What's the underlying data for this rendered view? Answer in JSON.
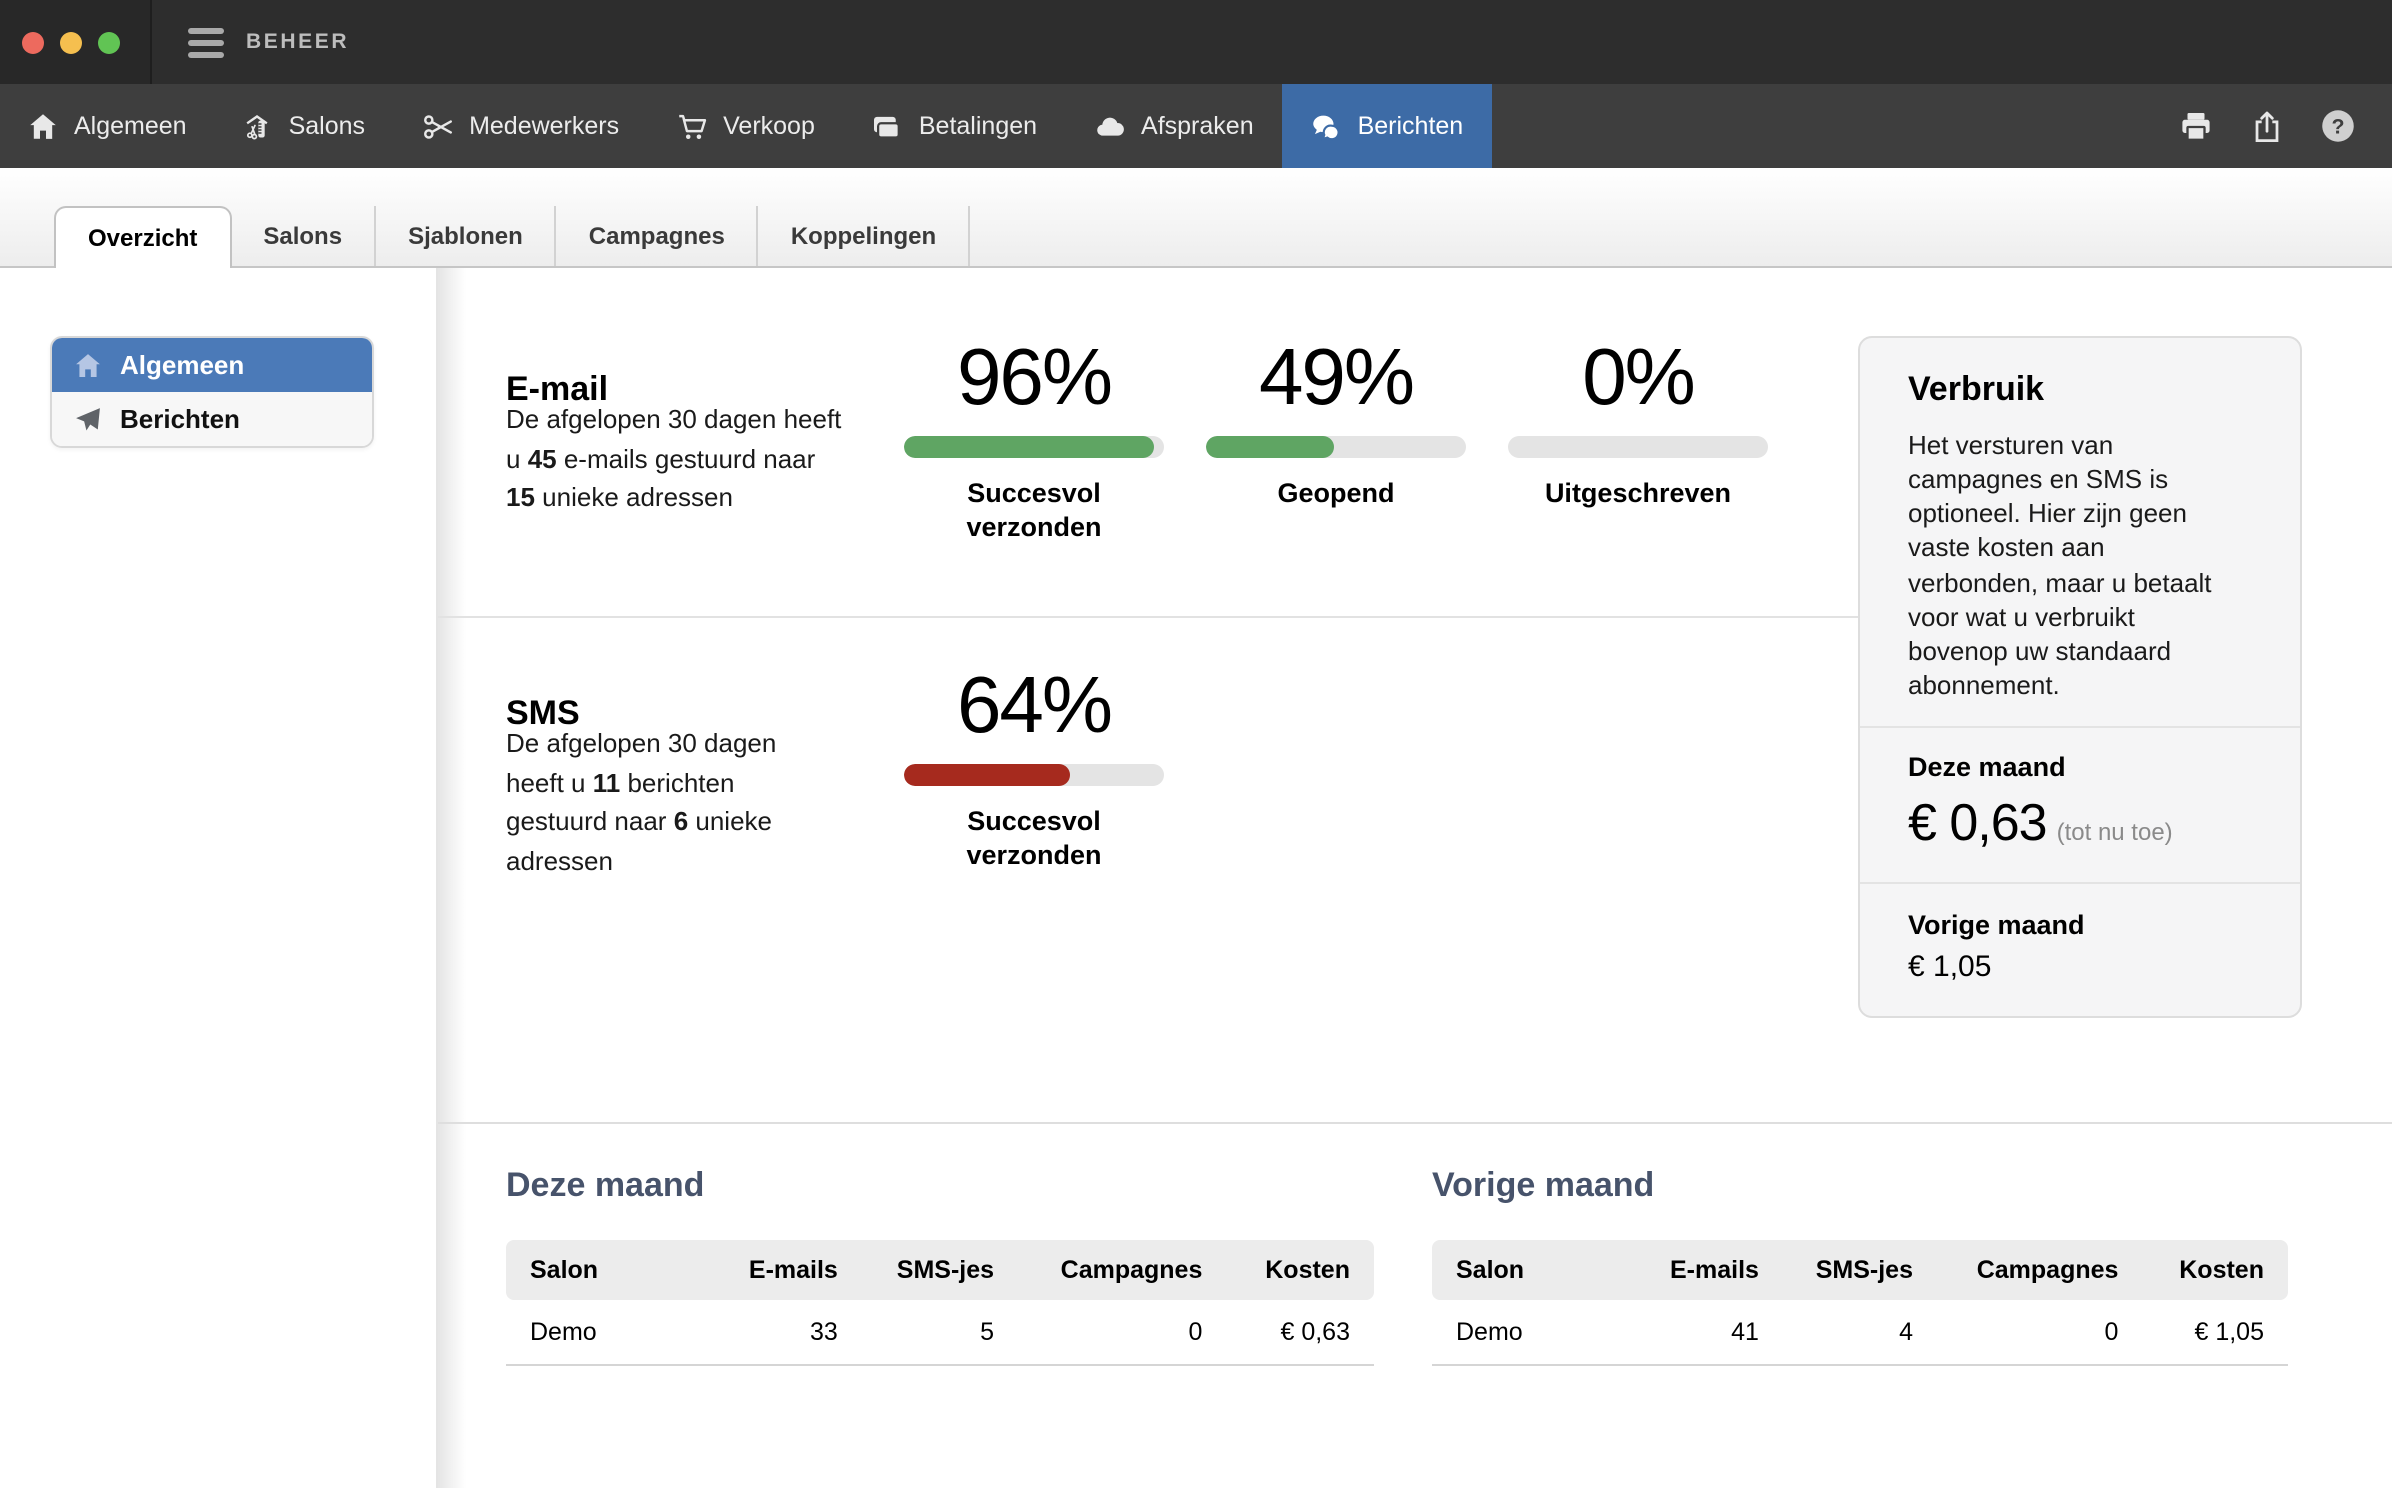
{
  "colors": {
    "green": "#5fa563",
    "red": "#a62a1e",
    "track": "#e4e4e4",
    "nav_active_blue": "#3d6ba6",
    "sidebar_active_blue": "#4b7ab8",
    "table_title": "#47536b"
  },
  "window": {
    "app_title": "BEHEER"
  },
  "navbar": {
    "items": [
      {
        "label": "Algemeen",
        "icon": "home-icon",
        "active": false
      },
      {
        "label": "Salons",
        "icon": "salon-icon",
        "active": false
      },
      {
        "label": "Medewerkers",
        "icon": "scissors-icon",
        "active": false
      },
      {
        "label": "Verkoop",
        "icon": "cart-icon",
        "active": false
      },
      {
        "label": "Betalingen",
        "icon": "payments-icon",
        "active": false
      },
      {
        "label": "Afspraken",
        "icon": "cloud-icon",
        "active": false
      },
      {
        "label": "Berichten",
        "icon": "chat-icon",
        "active": true
      }
    ],
    "actions": [
      {
        "icon": "printer-icon"
      },
      {
        "icon": "share-icon"
      },
      {
        "icon": "help-icon"
      }
    ]
  },
  "tabs": [
    {
      "label": "Overzicht",
      "active": true
    },
    {
      "label": "Salons",
      "active": false
    },
    {
      "label": "Sjablonen",
      "active": false
    },
    {
      "label": "Campagnes",
      "active": false
    },
    {
      "label": "Koppelingen",
      "active": false
    }
  ],
  "sidebar": {
    "items": [
      {
        "label": "Algemeen",
        "icon": "home-icon",
        "active": true
      },
      {
        "label": "Berichten",
        "icon": "send-icon",
        "active": false
      }
    ]
  },
  "email_section": {
    "title": "E-mail",
    "desc": [
      "De afgelopen 30 dagen heeft u ",
      "45",
      " e-mails gestuurd naar ",
      "15",
      " unieke adressen"
    ],
    "stats": [
      {
        "value": "96%",
        "pct": 96,
        "color": "green",
        "label": "Succesvol verzonden"
      },
      {
        "value": "49%",
        "pct": 49,
        "color": "green",
        "label": "Geopend"
      },
      {
        "value": "0%",
        "pct": 0,
        "color": "green",
        "label": "Uitgeschreven"
      }
    ]
  },
  "sms_section": {
    "title": "SMS",
    "desc": [
      "De afgelopen 30 dagen heeft u ",
      "11",
      " berichten gestuurd naar ",
      "6",
      " unieke adressen"
    ],
    "stats": [
      {
        "value": "64%",
        "pct": 64,
        "color": "red",
        "label": "Succesvol verzonden"
      }
    ]
  },
  "verbruik": {
    "title": "Verbruik",
    "body": "Het versturen van campagnes en SMS is optioneel. Hier zijn geen vaste kosten aan verbonden, maar u betaalt voor wat u verbruikt bovenop uw standaard abonnement.",
    "this_month_label": "Deze maand",
    "this_month_amount": "€ 0,63",
    "this_month_note": "(tot nu toe)",
    "last_month_label": "Vorige maand",
    "last_month_amount": "€ 1,05"
  },
  "tables": [
    {
      "title": "Deze maand",
      "headers": [
        "Salon",
        "E-mails",
        "SMS-jes",
        "Campagnes",
        "Kosten"
      ],
      "rows": [
        [
          "Demo",
          "33",
          "5",
          "0",
          "€ 0,63"
        ]
      ]
    },
    {
      "title": "Vorige maand",
      "headers": [
        "Salon",
        "E-mails",
        "SMS-jes",
        "Campagnes",
        "Kosten"
      ],
      "rows": [
        [
          "Demo",
          "41",
          "4",
          "0",
          "€ 1,05"
        ]
      ]
    }
  ]
}
